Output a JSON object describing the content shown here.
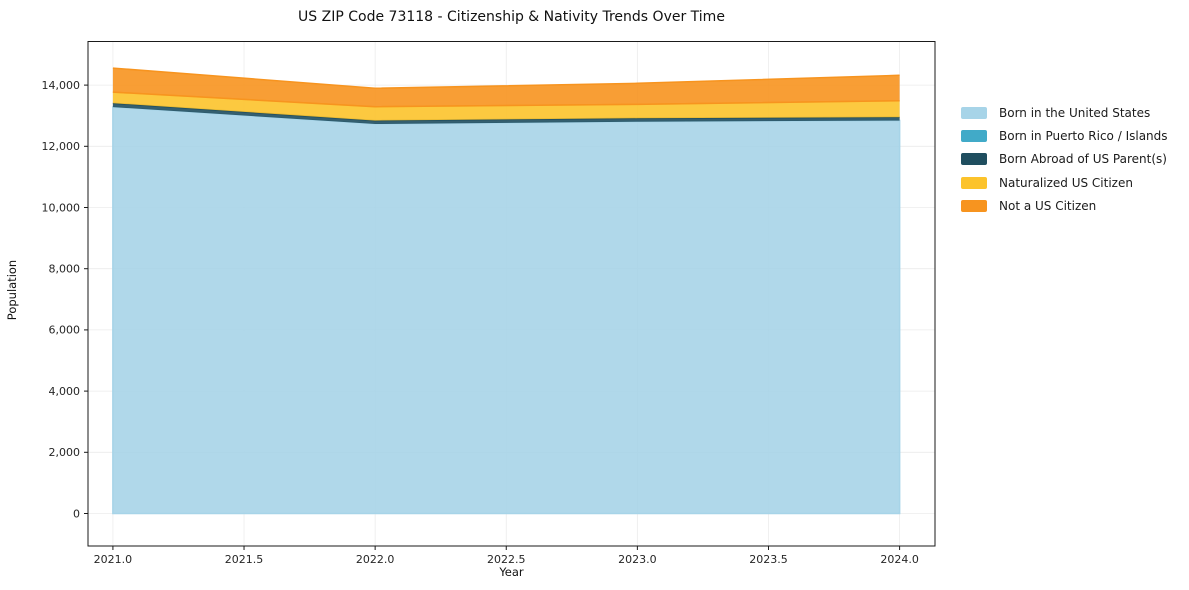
{
  "title": "US ZIP Code 73118 - Citizenship & Nativity Trends Over Time",
  "chart_data": {
    "type": "area",
    "stacked": true,
    "title": "US ZIP Code 73118 - Citizenship & Nativity Trends Over Time",
    "xlabel": "Year",
    "ylabel": "Population",
    "x": [
      2021,
      2022,
      2023,
      2024
    ],
    "series": [
      {
        "name": "Born in the United States",
        "color": "#a7d4e8",
        "values": [
          13280,
          12730,
          12805,
          12840
        ]
      },
      {
        "name": "Born in Puerto Rico / Islands",
        "color": "#41aac8",
        "values": [
          0,
          0,
          0,
          0
        ]
      },
      {
        "name": "Born Abroad of US Parent(s)",
        "color": "#1f4e5f",
        "values": [
          130,
          110,
          110,
          110
        ]
      },
      {
        "name": "Naturalized US Citizen",
        "color": "#fcc32b",
        "values": [
          360,
          455,
          455,
          540
        ]
      },
      {
        "name": "Not a US Citizen",
        "color": "#f7941f",
        "values": [
          785,
          600,
          690,
          830
        ]
      }
    ],
    "totals_by_year": [
      14555,
      13895,
      14060,
      14320
    ],
    "xticks": [
      2021.0,
      2021.5,
      2022.0,
      2022.5,
      2023.0,
      2023.5,
      2024.0
    ],
    "xtick_labels": [
      "2021.0",
      "2021.5",
      "2022.0",
      "2022.5",
      "2023.0",
      "2023.5",
      "2024.0"
    ],
    "yticks": [
      0,
      2000,
      4000,
      6000,
      8000,
      10000,
      12000,
      14000
    ],
    "ytick_labels": [
      "0",
      "2,000",
      "4,000",
      "6,000",
      "8,000",
      "10,000",
      "12,000",
      "14,000"
    ],
    "xlim": [
      2020.905,
      2024.135
    ],
    "ylim": [
      -1062,
      15425
    ],
    "grid": true,
    "legend_position": "right",
    "colors": {
      "spine": "#1a1a1a",
      "grid": "#dcdcdc",
      "tick_label": "#262626",
      "background": "#ffffff"
    }
  }
}
